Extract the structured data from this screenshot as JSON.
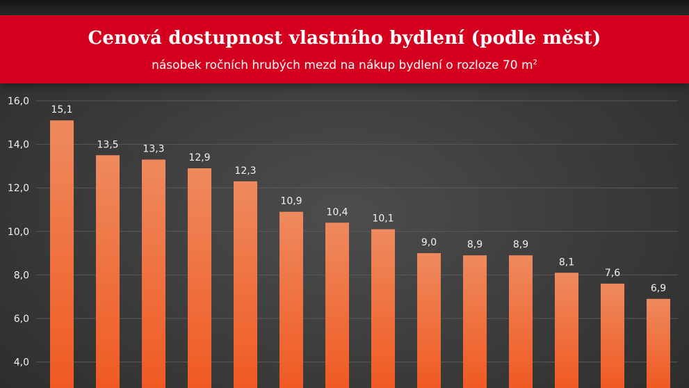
{
  "header": {
    "title": "Cenová dostupnost vlastního bydlení (podle měst)",
    "subtitle_text": "násobek ročních hrubých mezd na nákup bydlení o rozloze 70 m",
    "subtitle_sup": "2"
  },
  "colors": {
    "banner": "#d4001e",
    "bar_top": "#ee8a5e",
    "bar_bottom": "#f05a22"
  },
  "chart_data": {
    "type": "bar",
    "title": "Cenová dostupnost vlastního bydlení (podle měst)",
    "subtitle": "násobek ročních hrubých mezd na nákup bydlení o rozloze 70 m²",
    "xlabel": "",
    "ylabel": "",
    "values": [
      15.1,
      13.5,
      13.3,
      12.9,
      12.3,
      10.9,
      10.4,
      10.1,
      9.0,
      8.9,
      8.9,
      8.1,
      7.6,
      6.9
    ],
    "value_labels": [
      "15,1",
      "13,5",
      "13,3",
      "12,9",
      "12,3",
      "10,9",
      "10,4",
      "10,1",
      "9,0",
      "8,9",
      "8,9",
      "8,1",
      "7,6",
      "6,9"
    ],
    "y_ticks": [
      4,
      6,
      8,
      10,
      12,
      14,
      16
    ],
    "y_tick_labels": [
      "4,0",
      "6,0",
      "8,0",
      "10,0",
      "12,0",
      "14,0",
      "16,0"
    ],
    "ylim": [
      4,
      16
    ],
    "grid": true,
    "legend": "none"
  }
}
